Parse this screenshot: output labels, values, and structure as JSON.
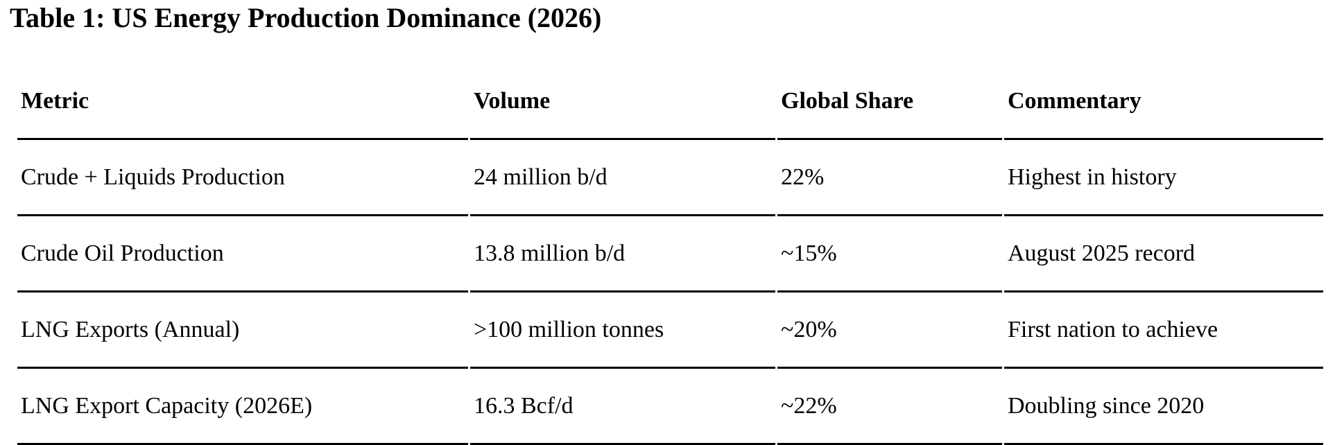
{
  "title": "Table 1: US Energy Production Dominance (2026)",
  "table": {
    "columns": [
      "Metric",
      "Volume",
      "Global Share",
      "Commentary"
    ],
    "rows": [
      [
        "Crude + Liquids Production",
        "24 million b/d",
        "22%",
        "Highest in history"
      ],
      [
        "Crude Oil Production",
        "13.8 million b/d",
        "~15%",
        "August 2025 record"
      ],
      [
        "LNG Exports (Annual)",
        ">100 million tonnes",
        "~20%",
        "First nation to achieve"
      ],
      [
        "LNG Export Capacity (2026E)",
        "16.3 Bcf/d",
        "~22%",
        "Doubling since 2020"
      ]
    ]
  },
  "colors": {
    "background": "#ffffff",
    "text": "#000000",
    "rule": "#000000"
  }
}
